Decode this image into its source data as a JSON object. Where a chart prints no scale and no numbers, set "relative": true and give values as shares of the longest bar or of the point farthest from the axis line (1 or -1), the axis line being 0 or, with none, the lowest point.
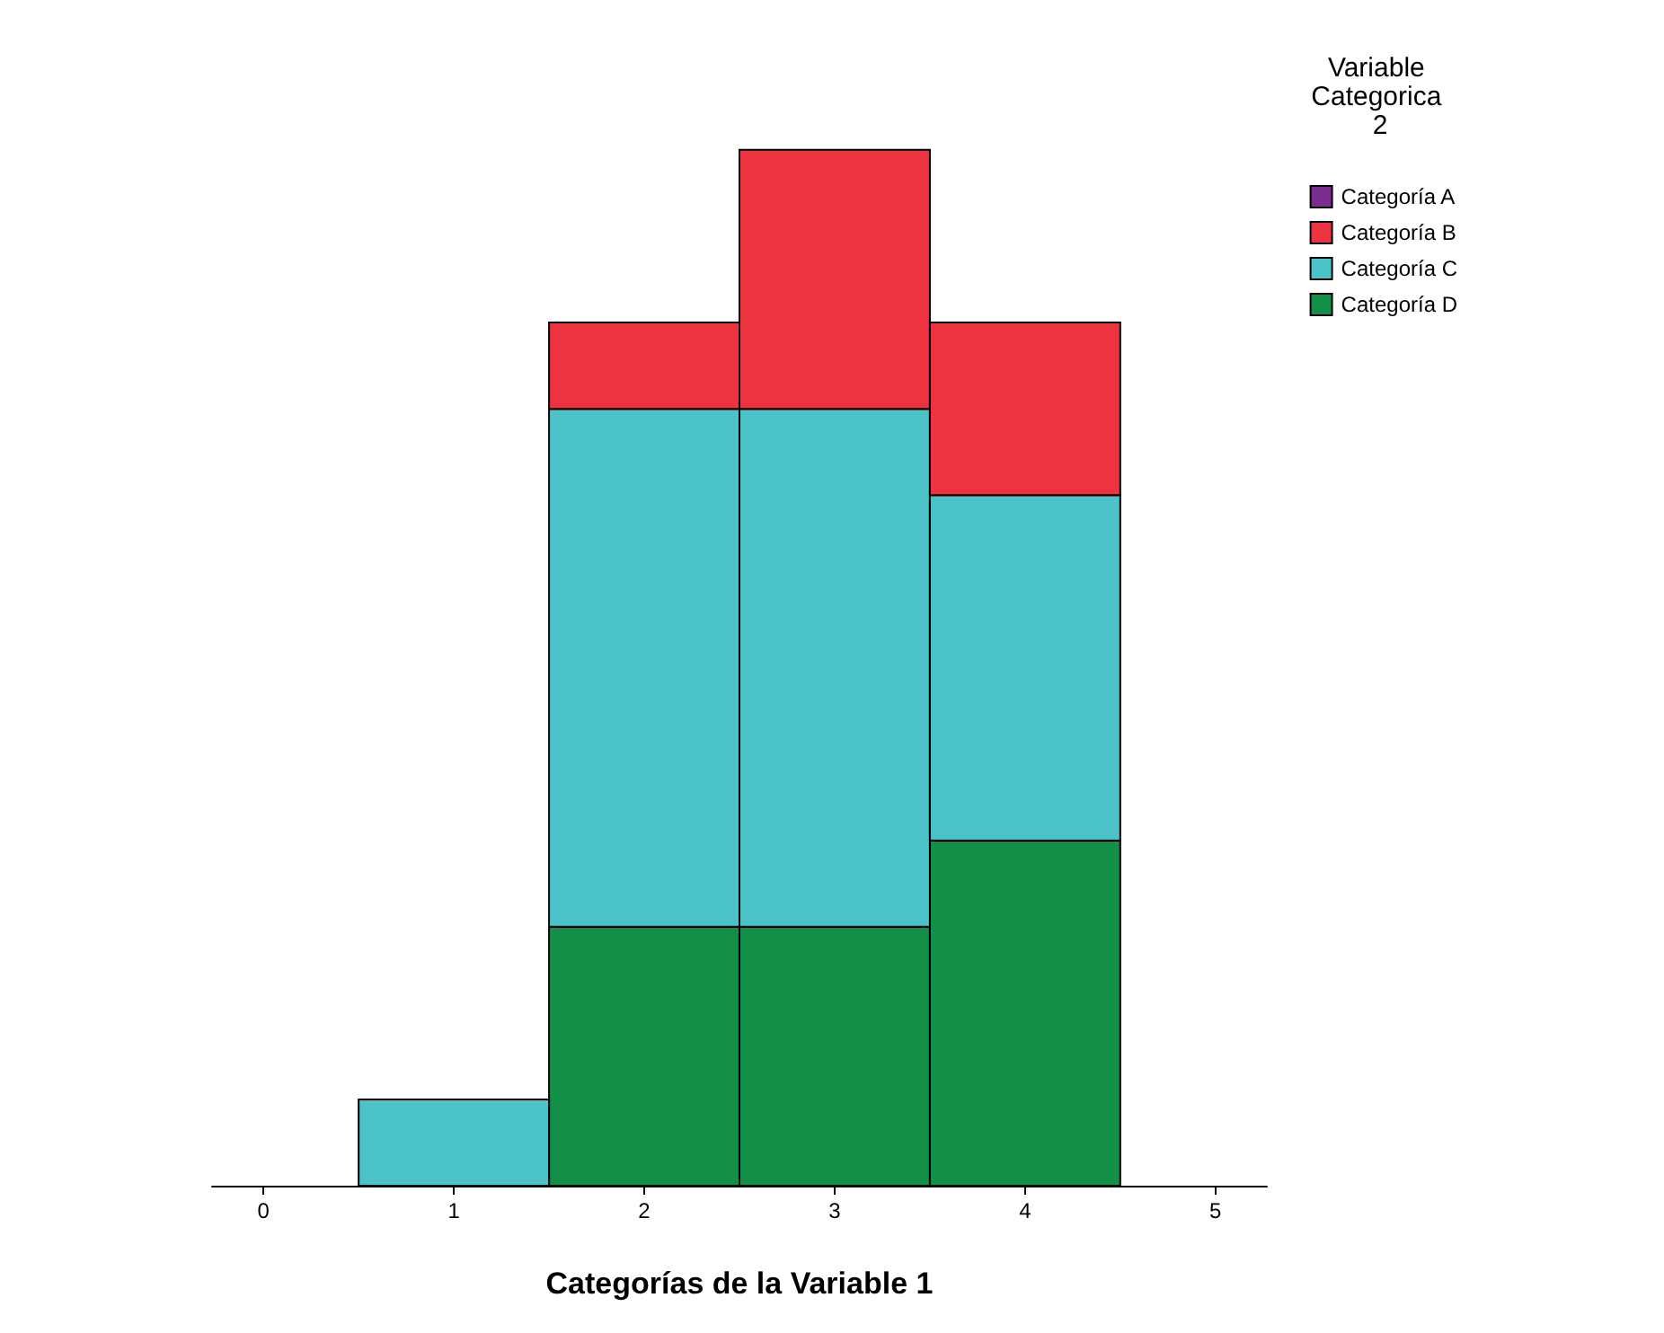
{
  "chart_data": {
    "type": "bar",
    "stacked": true,
    "relative": true,
    "xlabel": "Categorías de la Variable 1",
    "legend_title": "Variable Categorica 2",
    "legend": "top right",
    "grid": false,
    "x": [
      1,
      2,
      3,
      4
    ],
    "xlim": [
      -0.27,
      5.27
    ],
    "xticks": [
      0,
      1,
      2,
      3,
      4,
      5
    ],
    "series": [
      {
        "name": "Categoría D",
        "color": "#148f48",
        "values": [
          0,
          0.25,
          0.25,
          0.3333
        ]
      },
      {
        "name": "Categoría C",
        "color": "#4bc3c8",
        "values": [
          0.0833,
          0.5,
          0.5,
          0.3333
        ]
      },
      {
        "name": "Categoría B",
        "color": "#ee3340",
        "values": [
          0,
          0.0833,
          0.25,
          0.1667
        ]
      },
      {
        "name": "Categoría A",
        "color": "#7b2d8e",
        "values": [
          0,
          0,
          0,
          0
        ]
      }
    ]
  }
}
